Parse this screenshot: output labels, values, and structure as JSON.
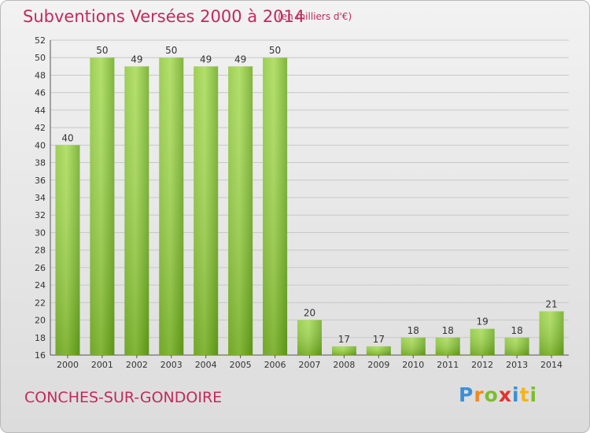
{
  "header": {
    "title": "Subventions Versées 2000 à 2014",
    "subtitle": "(en milliers d'€)"
  },
  "footer": {
    "commune": "CONCHES-SUR-GONDOIRE",
    "logo_text": "Proxiti"
  },
  "colors": {
    "title": "#bf2b5c",
    "bar_light": "#a3d94f",
    "bar_dark": "#5e9c15",
    "grid": "#c8c8c8"
  },
  "chart_data": {
    "type": "bar",
    "title": "Subventions Versées 2000 à 2014",
    "subtitle": "(en milliers d'€)",
    "categories": [
      "2000",
      "2001",
      "2002",
      "2003",
      "2004",
      "2005",
      "2006",
      "2007",
      "2008",
      "2009",
      "2010",
      "2011",
      "2012",
      "2013",
      "2014"
    ],
    "values": [
      40,
      50,
      49,
      50,
      49,
      49,
      50,
      20,
      17,
      17,
      18,
      18,
      19,
      18,
      21
    ],
    "ylim": [
      16,
      52
    ],
    "ytick_step": 2,
    "grid": true,
    "data_labels": true
  }
}
